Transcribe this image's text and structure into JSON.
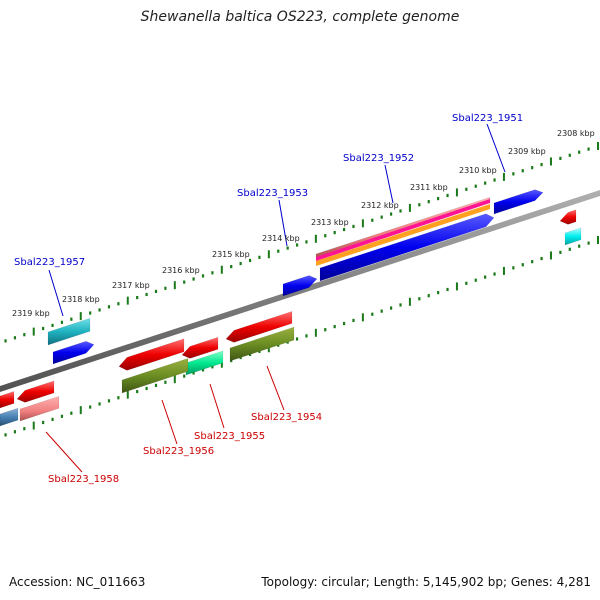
{
  "title": "Shewanella baltica OS223, complete genome",
  "footer": {
    "accession": "Accession: NC_011663",
    "summary": "Topology: circular; Length: 5,145,902 bp; Genes: 4,281"
  },
  "colors": {
    "backbone": "#808080",
    "tick": "#1a7a1a",
    "forward_label": "#0000cc",
    "reverse_label": "#cc0000"
  },
  "scale_labels": [
    "2308 kbp",
    "2309 kbp",
    "2310 kbp",
    "2311 kbp",
    "2312 kbp",
    "2313 kbp",
    "2314 kbp",
    "2315 kbp",
    "2316 kbp",
    "2317 kbp",
    "2318 kbp",
    "2319 kbp"
  ],
  "genes_forward": [
    "Sbal223_1951",
    "Sbal223_1952",
    "Sbal223_1953",
    "Sbal223_1957"
  ],
  "genes_reverse": [
    "Sbal223_1954",
    "Sbal223_1955",
    "Sbal223_1956",
    "Sbal223_1958"
  ]
}
